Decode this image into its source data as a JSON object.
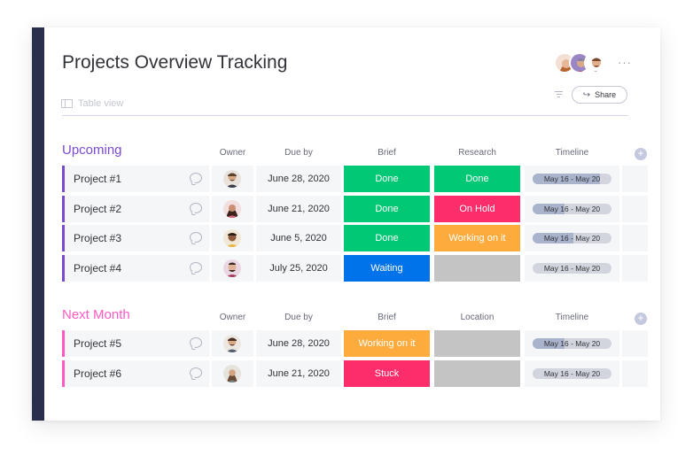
{
  "board": {
    "title": "Projects Overview Tracking",
    "view_label": "Table view",
    "share_label": "Share",
    "more_label": "···"
  },
  "colors": {
    "done": "#00c875",
    "on_hold": "#fd2c6b",
    "working": "#fdab3d",
    "waiting": "#0073ea",
    "empty": "#c4c4c4",
    "upcoming": "#784bd1",
    "next_month": "#ff5ac4"
  },
  "groups": [
    {
      "title": "Upcoming",
      "color": "#784bd1",
      "columns": [
        "Owner",
        "Due by",
        "Brief",
        "Research",
        "Timeline"
      ],
      "rows": [
        {
          "name": "Project #1",
          "due": "June 28, 2020",
          "brief": "Done",
          "second": "Done",
          "timeline": "May 16 - May 20",
          "timeline_progress": 0.85
        },
        {
          "name": "Project #2",
          "due": "June 21, 2020",
          "brief": "Done",
          "second": "On Hold",
          "timeline": "May 16 - May 20",
          "timeline_progress": 0.4
        },
        {
          "name": "Project #3",
          "due": "June 5, 2020",
          "brief": "Done",
          "second": "Working on it",
          "timeline": "May 16 - May 20",
          "timeline_progress": 0.52
        },
        {
          "name": "Project #4",
          "due": "July 25, 2020",
          "brief": "Waiting",
          "second": "",
          "timeline": "May 16 - May 20",
          "timeline_progress": 0
        }
      ]
    },
    {
      "title": "Next Month",
      "color": "#ff5ac4",
      "columns": [
        "Owner",
        "Due by",
        "Brief",
        "Location",
        "Timeline"
      ],
      "rows": [
        {
          "name": "Project #5",
          "due": "June 28, 2020",
          "brief": "Working on it",
          "second": "",
          "timeline": "May 16 - May 20",
          "timeline_progress": 0.4
        },
        {
          "name": "Project #6",
          "due": "June 21, 2020",
          "brief": "Stuck",
          "second": "",
          "timeline": "May 16 - May 20",
          "timeline_progress": 0
        }
      ]
    }
  ]
}
